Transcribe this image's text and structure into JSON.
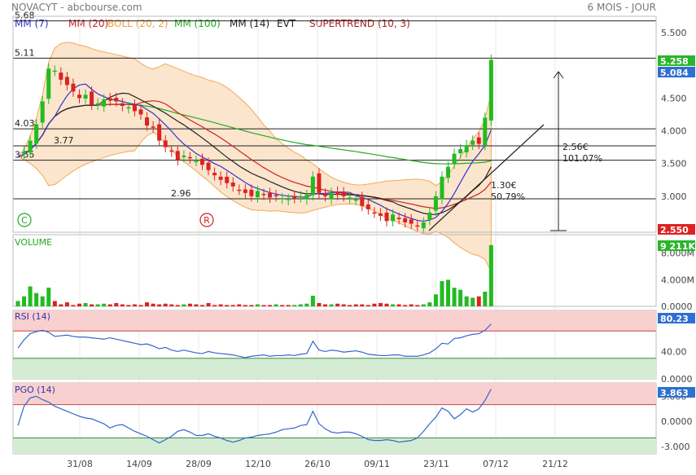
{
  "header": {
    "title": "NOVACYT - abcbourse.com",
    "period": "6 MOIS - JOUR"
  },
  "legend": [
    {
      "label": "MM (7)",
      "color": "#3333cc"
    },
    {
      "label": "MM (20)",
      "color": "#cc2222"
    },
    {
      "label": "BOLL (20, 2)",
      "color": "#f0a040"
    },
    {
      "label": "MM (100)",
      "color": "#22aa22"
    },
    {
      "label": "MM (14)",
      "color": "#222222"
    },
    {
      "label": "EVT",
      "color": "#222222"
    },
    {
      "label": "SUPERTREND (10, 3)",
      "color": "#aa2222"
    }
  ],
  "colors": {
    "up": "#22bb22",
    "down": "#dd2222",
    "boll_fill": "#fbe3c8",
    "rsi_high": "#f8d0d0",
    "rsi_low": "#d4ecd4",
    "value_badge_green": "#2bb52b",
    "value_badge_blue": "#2f6fd0",
    "value_badge_red": "#dd2222",
    "grid": "#e8e8e8"
  },
  "chart_data": [
    {
      "type": "candlestick",
      "panel": "price",
      "title": "",
      "x_ticks": [
        "31/08",
        "14/09",
        "28/09",
        "12/10",
        "26/10",
        "09/11",
        "23/11",
        "07/12",
        "21/12"
      ],
      "yticks": [
        "5.500",
        "4.500",
        "4.000",
        "3.500",
        "3.000"
      ],
      "ylim": [
        2.45,
        5.75
      ],
      "close_series": [
        3.6,
        3.68,
        3.85,
        4.1,
        4.45,
        4.95,
        4.92,
        4.78,
        4.7,
        4.6,
        4.5,
        4.55,
        4.4,
        4.42,
        4.48,
        4.46,
        4.45,
        4.38,
        4.36,
        4.3,
        4.25,
        4.08,
        4.05,
        3.85,
        3.75,
        3.68,
        3.55,
        3.62,
        3.58,
        3.54,
        3.48,
        3.4,
        3.32,
        3.25,
        3.2,
        3.15,
        3.1,
        3.05,
        3.0,
        3.08,
        3.02,
        2.98,
        3.0,
        2.97,
        2.96,
        2.97,
        3.0,
        3.02,
        3.3,
        3.05,
        3.0,
        3.05,
        3.02,
        3.0,
        2.98,
        2.95,
        2.85,
        2.8,
        2.75,
        2.7,
        2.62,
        2.72,
        2.65,
        2.6,
        2.58,
        2.55,
        2.6,
        2.75,
        3.0,
        3.3,
        3.45,
        3.65,
        3.72,
        3.78,
        3.85,
        3.8,
        4.2,
        5.084
      ],
      "price_levels": [
        {
          "label": "5.68",
          "value": 5.68
        },
        {
          "label": "5.11",
          "value": 5.11
        },
        {
          "label": "4.03",
          "value": 4.03
        },
        {
          "label": "3.77",
          "value": 3.77
        },
        {
          "label": "3.55",
          "value": 3.55
        },
        {
          "label": "2.96",
          "value": 2.96
        }
      ],
      "annotations": [
        {
          "text": "2.56€",
          "kind": "move"
        },
        {
          "text": "101.07%",
          "kind": "move"
        },
        {
          "text": "1.30€",
          "kind": "move"
        },
        {
          "text": "50.79%",
          "kind": "move"
        }
      ],
      "markers": [
        {
          "letter": "C",
          "color": "#22aa22"
        },
        {
          "letter": "R",
          "color": "#cc2222"
        }
      ],
      "value_badges": [
        {
          "text": "5.258",
          "color": "#2bb52b"
        },
        {
          "text": "5.084",
          "color": "#2f6fd0"
        },
        {
          "text": "2.550",
          "color": "#dd2222"
        }
      ]
    },
    {
      "type": "bar",
      "panel": "volume",
      "title": "VOLUME",
      "yticks": [
        "8.000M",
        "4.000M",
        "0.0000"
      ],
      "ylim": [
        0,
        9.8
      ],
      "values": [
        0.8,
        1.5,
        3.0,
        2.0,
        1.5,
        2.8,
        0.8,
        0.3,
        0.6,
        0.2,
        0.4,
        0.5,
        0.3,
        0.3,
        0.4,
        0.3,
        0.5,
        0.3,
        0.2,
        0.3,
        0.2,
        0.6,
        0.4,
        0.3,
        0.4,
        0.3,
        0.2,
        0.3,
        0.4,
        0.3,
        0.2,
        0.5,
        0.2,
        0.3,
        0.2,
        0.2,
        0.3,
        0.2,
        0.2,
        0.3,
        0.2,
        0.2,
        0.3,
        0.2,
        0.2,
        0.2,
        0.3,
        0.4,
        1.6,
        0.5,
        0.3,
        0.3,
        0.4,
        0.3,
        0.2,
        0.3,
        0.3,
        0.2,
        0.4,
        0.5,
        0.4,
        0.3,
        0.3,
        0.2,
        0.3,
        0.2,
        0.3,
        0.6,
        1.8,
        3.8,
        4.0,
        2.8,
        2.5,
        1.5,
        1.3,
        1.5,
        2.2,
        9.211
      ],
      "value_badge": {
        "text": "9 211K",
        "color": "#2bb52b"
      }
    },
    {
      "type": "line",
      "panel": "rsi",
      "title": "RSI (14)",
      "yticks": [
        "40.00",
        "0.0000"
      ],
      "ylim": [
        0,
        100
      ],
      "bands": {
        "high": 70,
        "low": 30
      },
      "values": [
        45,
        57,
        66,
        69,
        71,
        68,
        62,
        63,
        64,
        62,
        61,
        61,
        60,
        59,
        58,
        60,
        58,
        56,
        54,
        52,
        50,
        51,
        48,
        44,
        46,
        42,
        40,
        42,
        40,
        38,
        37,
        40,
        38,
        37,
        36,
        35,
        33,
        31,
        33,
        34,
        35,
        33,
        34,
        34,
        35,
        34,
        36,
        37,
        55,
        42,
        40,
        42,
        41,
        39,
        40,
        41,
        39,
        36,
        35,
        34,
        34,
        35,
        35,
        33,
        33,
        33,
        35,
        38,
        44,
        52,
        51,
        59,
        60,
        63,
        65,
        66,
        71,
        80.23
      ],
      "value_badge": {
        "text": "80.23",
        "color": "#2f6fd0"
      }
    },
    {
      "type": "line",
      "panel": "pgo",
      "title": "PGO (14)",
      "yticks": [
        "3.000",
        "0.0000",
        "-3.000"
      ],
      "ylim": [
        -3.9,
        4.6
      ],
      "bands": {
        "high": 2.0,
        "low": -2.0
      },
      "values": [
        -0.5,
        1.8,
        2.8,
        3.0,
        2.6,
        2.3,
        1.8,
        1.5,
        1.2,
        0.9,
        0.6,
        0.4,
        0.3,
        0.0,
        -0.3,
        -0.8,
        -0.5,
        -0.4,
        -0.8,
        -1.2,
        -1.5,
        -1.8,
        -2.2,
        -2.6,
        -2.2,
        -1.8,
        -1.2,
        -1.0,
        -1.3,
        -1.7,
        -1.7,
        -1.5,
        -1.8,
        -2.0,
        -2.3,
        -2.5,
        -2.3,
        -2.0,
        -1.9,
        -1.7,
        -1.6,
        -1.5,
        -1.3,
        -1.0,
        -0.9,
        -0.8,
        -0.5,
        -0.4,
        1.2,
        -0.3,
        -0.9,
        -1.3,
        -1.4,
        -1.3,
        -1.3,
        -1.5,
        -1.8,
        -2.2,
        -2.3,
        -2.3,
        -2.2,
        -2.3,
        -2.5,
        -2.4,
        -2.3,
        -2.0,
        -1.2,
        -0.3,
        0.5,
        1.6,
        1.2,
        0.3,
        0.8,
        1.5,
        1.1,
        1.5,
        2.5,
        3.863
      ],
      "value_badge": {
        "text": "3.863",
        "color": "#2f6fd0"
      }
    }
  ]
}
